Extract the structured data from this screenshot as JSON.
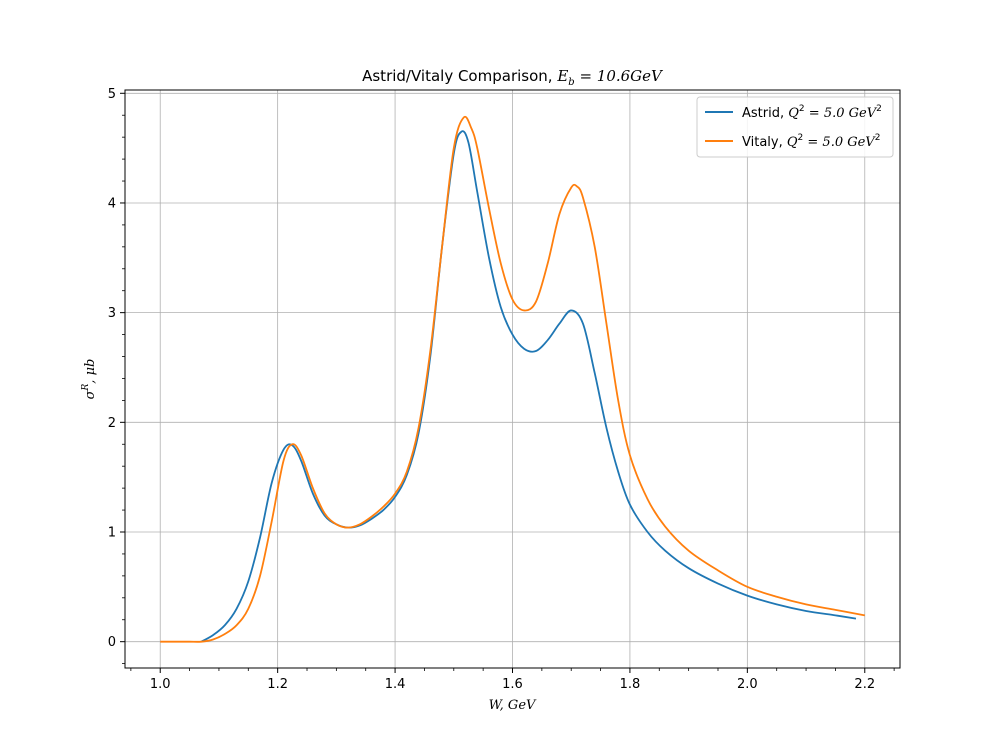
{
  "chart_data": {
    "type": "line",
    "title_prefix": "Astrid/Vitaly Comparison, ",
    "title_math": "E",
    "title_math_sub": "b",
    "title_suffix": " = 10.6GeV",
    "xlabel": "W, GeV",
    "ylabel_sym": "σ",
    "ylabel_sup": "R",
    "ylabel_rest": ", μb",
    "xlim": [
      0.94,
      2.26
    ],
    "ylim": [
      -0.24,
      5.03
    ],
    "xticks": [
      1.0,
      1.2,
      1.4,
      1.6,
      1.8,
      2.0,
      2.2
    ],
    "xtick_labels": [
      "1.0",
      "1.2",
      "1.4",
      "1.6",
      "1.8",
      "2.0",
      "2.2"
    ],
    "yticks": [
      0,
      1,
      2,
      3,
      4,
      5
    ],
    "ytick_labels": [
      "0",
      "1",
      "2",
      "3",
      "4",
      "5"
    ],
    "grid": true,
    "legend_position": "top-right",
    "series": [
      {
        "name": "Astrid, Q² = 5.0 GeV²",
        "legend_prefix": "Astrid, ",
        "legend_math": "Q",
        "legend_sup": "2",
        "legend_mid": " = 5.0 GeV",
        "legend_sup2": "2",
        "color": "#1f77b4",
        "x": [
          1.07,
          1.09,
          1.11,
          1.13,
          1.15,
          1.17,
          1.19,
          1.21,
          1.225,
          1.24,
          1.26,
          1.28,
          1.3,
          1.32,
          1.34,
          1.36,
          1.38,
          1.4,
          1.42,
          1.44,
          1.46,
          1.48,
          1.5,
          1.513,
          1.525,
          1.54,
          1.56,
          1.58,
          1.6,
          1.62,
          1.64,
          1.66,
          1.68,
          1.7,
          1.72,
          1.74,
          1.76,
          1.78,
          1.8,
          1.83,
          1.86,
          1.9,
          1.95,
          2.0,
          2.05,
          2.1,
          2.15,
          2.185
        ],
        "y": [
          0.0,
          0.06,
          0.15,
          0.3,
          0.55,
          0.95,
          1.45,
          1.75,
          1.79,
          1.65,
          1.35,
          1.15,
          1.07,
          1.04,
          1.06,
          1.12,
          1.2,
          1.32,
          1.52,
          1.9,
          2.6,
          3.6,
          4.45,
          4.65,
          4.55,
          4.1,
          3.5,
          3.05,
          2.8,
          2.67,
          2.65,
          2.75,
          2.9,
          3.02,
          2.9,
          2.45,
          1.95,
          1.55,
          1.25,
          1.0,
          0.83,
          0.67,
          0.53,
          0.42,
          0.34,
          0.28,
          0.24,
          0.21
        ]
      },
      {
        "name": "Vitaly, Q² = 5.0 GeV²",
        "legend_prefix": "Vitaly, ",
        "legend_math": "Q",
        "legend_sup": "2",
        "legend_mid": " = 5.0 GeV",
        "legend_sup2": "2",
        "color": "#ff7f0e",
        "x": [
          1.0,
          1.03,
          1.05,
          1.07,
          1.09,
          1.11,
          1.13,
          1.15,
          1.17,
          1.19,
          1.21,
          1.225,
          1.24,
          1.26,
          1.28,
          1.3,
          1.32,
          1.34,
          1.36,
          1.38,
          1.4,
          1.42,
          1.44,
          1.46,
          1.48,
          1.5,
          1.517,
          1.53,
          1.54,
          1.56,
          1.58,
          1.6,
          1.62,
          1.64,
          1.66,
          1.68,
          1.7,
          1.71,
          1.72,
          1.74,
          1.76,
          1.78,
          1.8,
          1.83,
          1.86,
          1.9,
          1.95,
          2.0,
          2.05,
          2.1,
          2.15,
          2.2
        ],
        "y": [
          0.0,
          0.0,
          0.0,
          0.0,
          0.02,
          0.07,
          0.15,
          0.3,
          0.6,
          1.1,
          1.65,
          1.8,
          1.7,
          1.4,
          1.17,
          1.07,
          1.04,
          1.07,
          1.14,
          1.23,
          1.35,
          1.55,
          1.95,
          2.65,
          3.6,
          4.5,
          4.78,
          4.68,
          4.5,
          3.95,
          3.45,
          3.12,
          3.02,
          3.1,
          3.45,
          3.9,
          4.14,
          4.15,
          4.05,
          3.6,
          2.9,
          2.2,
          1.7,
          1.3,
          1.05,
          0.83,
          0.65,
          0.5,
          0.41,
          0.34,
          0.29,
          0.24
        ]
      }
    ]
  }
}
